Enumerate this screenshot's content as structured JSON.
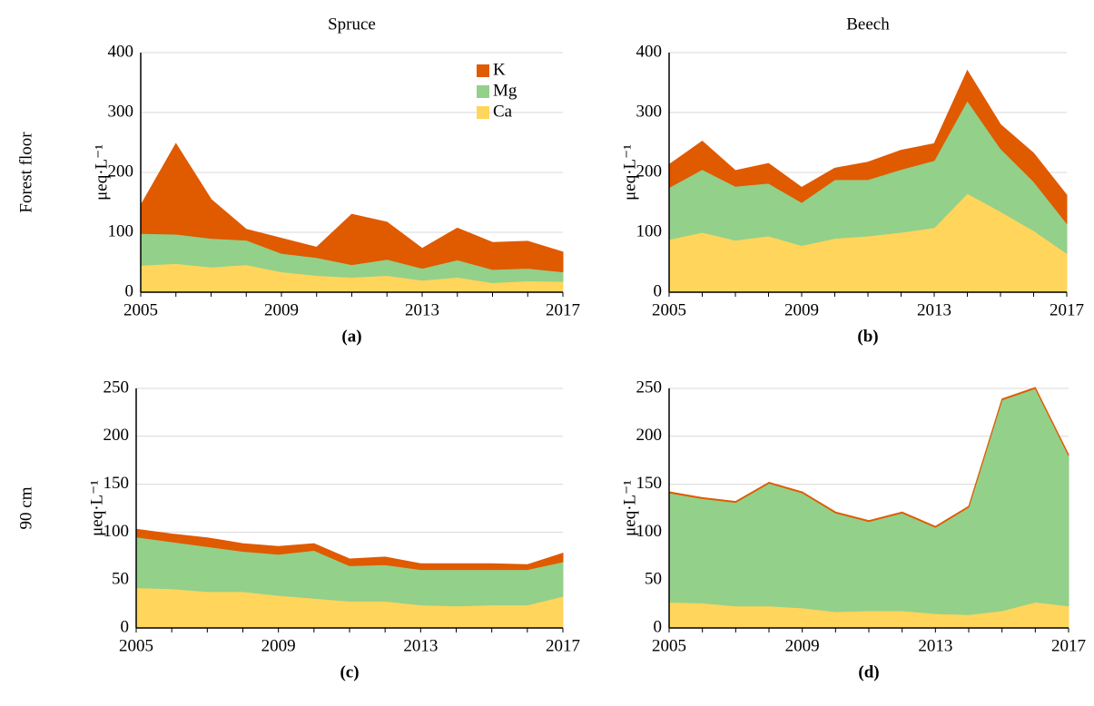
{
  "chart_data": [
    {
      "type": "area",
      "stacked": true,
      "title": "Spruce",
      "row_label": "Forest floor",
      "caption": "(a)",
      "ylabel": "μeq·L⁻¹",
      "x": [
        2005,
        2006,
        2007,
        2008,
        2009,
        2010,
        2011,
        2012,
        2013,
        2014,
        2015,
        2016,
        2017
      ],
      "xlim": [
        2005,
        2017
      ],
      "xticks": [
        2005,
        2009,
        2013,
        2017
      ],
      "ylim": [
        0,
        400
      ],
      "yticks": [
        0,
        100,
        200,
        300,
        400
      ],
      "grid": true,
      "legend": "upper right",
      "series": [
        {
          "name": "Ca",
          "color": "#ffd55c",
          "values": [
            45,
            48,
            42,
            46,
            34,
            28,
            25,
            28,
            20,
            25,
            16,
            19,
            18
          ]
        },
        {
          "name": "Mg",
          "color": "#93d08a",
          "values": [
            53,
            49,
            48,
            41,
            31,
            30,
            21,
            27,
            20,
            29,
            22,
            21,
            16
          ]
        },
        {
          "name": "K",
          "color": "#e05a00",
          "values": [
            47,
            151,
            65,
            18,
            25,
            17,
            84,
            62,
            33,
            53,
            45,
            45,
            33
          ]
        }
      ]
    },
    {
      "type": "area",
      "stacked": true,
      "title": "Beech",
      "caption": "(b)",
      "ylabel": "μeq·L⁻¹",
      "x": [
        2005,
        2006,
        2007,
        2008,
        2009,
        2010,
        2011,
        2012,
        2013,
        2014,
        2015,
        2016,
        2017
      ],
      "xlim": [
        2005,
        2017
      ],
      "xticks": [
        2005,
        2009,
        2013,
        2017
      ],
      "ylim": [
        0,
        400
      ],
      "yticks": [
        0,
        100,
        200,
        300,
        400
      ],
      "grid": true,
      "series": [
        {
          "name": "Ca",
          "color": "#ffd55c",
          "values": [
            88,
            100,
            87,
            94,
            78,
            90,
            94,
            100,
            108,
            165,
            135,
            103,
            65
          ]
        },
        {
          "name": "Mg",
          "color": "#93d08a",
          "values": [
            87,
            105,
            90,
            88,
            72,
            98,
            94,
            105,
            112,
            155,
            105,
            82,
            50
          ]
        },
        {
          "name": "K",
          "color": "#e05a00",
          "values": [
            38,
            47,
            26,
            33,
            25,
            19,
            29,
            32,
            28,
            50,
            40,
            47,
            47
          ]
        }
      ]
    },
    {
      "type": "area",
      "stacked": true,
      "row_label": "90 cm",
      "caption": "(c)",
      "ylabel": "μeq·L⁻¹",
      "x": [
        2005,
        2006,
        2007,
        2008,
        2009,
        2010,
        2011,
        2012,
        2013,
        2014,
        2015,
        2016,
        2017
      ],
      "xlim": [
        2005,
        2017
      ],
      "xticks": [
        2005,
        2009,
        2013,
        2017
      ],
      "ylim": [
        0,
        250
      ],
      "yticks": [
        0,
        50,
        100,
        150,
        200,
        250
      ],
      "grid": true,
      "series": [
        {
          "name": "Ca",
          "color": "#ffd55c",
          "values": [
            42,
            41,
            38,
            38,
            34,
            31,
            28,
            28,
            24,
            23,
            24,
            24,
            33
          ]
        },
        {
          "name": "Mg",
          "color": "#93d08a",
          "values": [
            53,
            49,
            47,
            42,
            43,
            50,
            37,
            38,
            37,
            38,
            37,
            37,
            36
          ]
        },
        {
          "name": "K",
          "color": "#e05a00",
          "values": [
            8,
            8,
            9,
            8,
            8,
            7,
            7,
            8,
            6,
            6,
            6,
            5,
            9
          ]
        }
      ]
    },
    {
      "type": "area",
      "stacked": true,
      "caption": "(d)",
      "ylabel": "μeq·L⁻¹",
      "x": [
        2005,
        2006,
        2007,
        2008,
        2009,
        2010,
        2011,
        2012,
        2013,
        2014,
        2015,
        2016,
        2017
      ],
      "xlim": [
        2005,
        2017
      ],
      "xticks": [
        2005,
        2009,
        2013,
        2017
      ],
      "ylim": [
        0,
        250
      ],
      "yticks": [
        0,
        50,
        100,
        150,
        200,
        250
      ],
      "grid": true,
      "series": [
        {
          "name": "Ca",
          "color": "#ffd55c",
          "values": [
            27,
            26,
            23,
            23,
            21,
            17,
            18,
            18,
            15,
            14,
            18,
            27,
            23
          ]
        },
        {
          "name": "Mg",
          "color": "#93d08a",
          "values": [
            114,
            109,
            108,
            128,
            120,
            103,
            93,
            102,
            90,
            112,
            220,
            223,
            157
          ]
        },
        {
          "name": "K",
          "color": "#e05a00",
          "values": [
            1,
            1,
            1,
            1,
            1,
            1,
            1,
            1,
            1,
            1,
            1,
            1,
            1
          ]
        }
      ]
    }
  ]
}
